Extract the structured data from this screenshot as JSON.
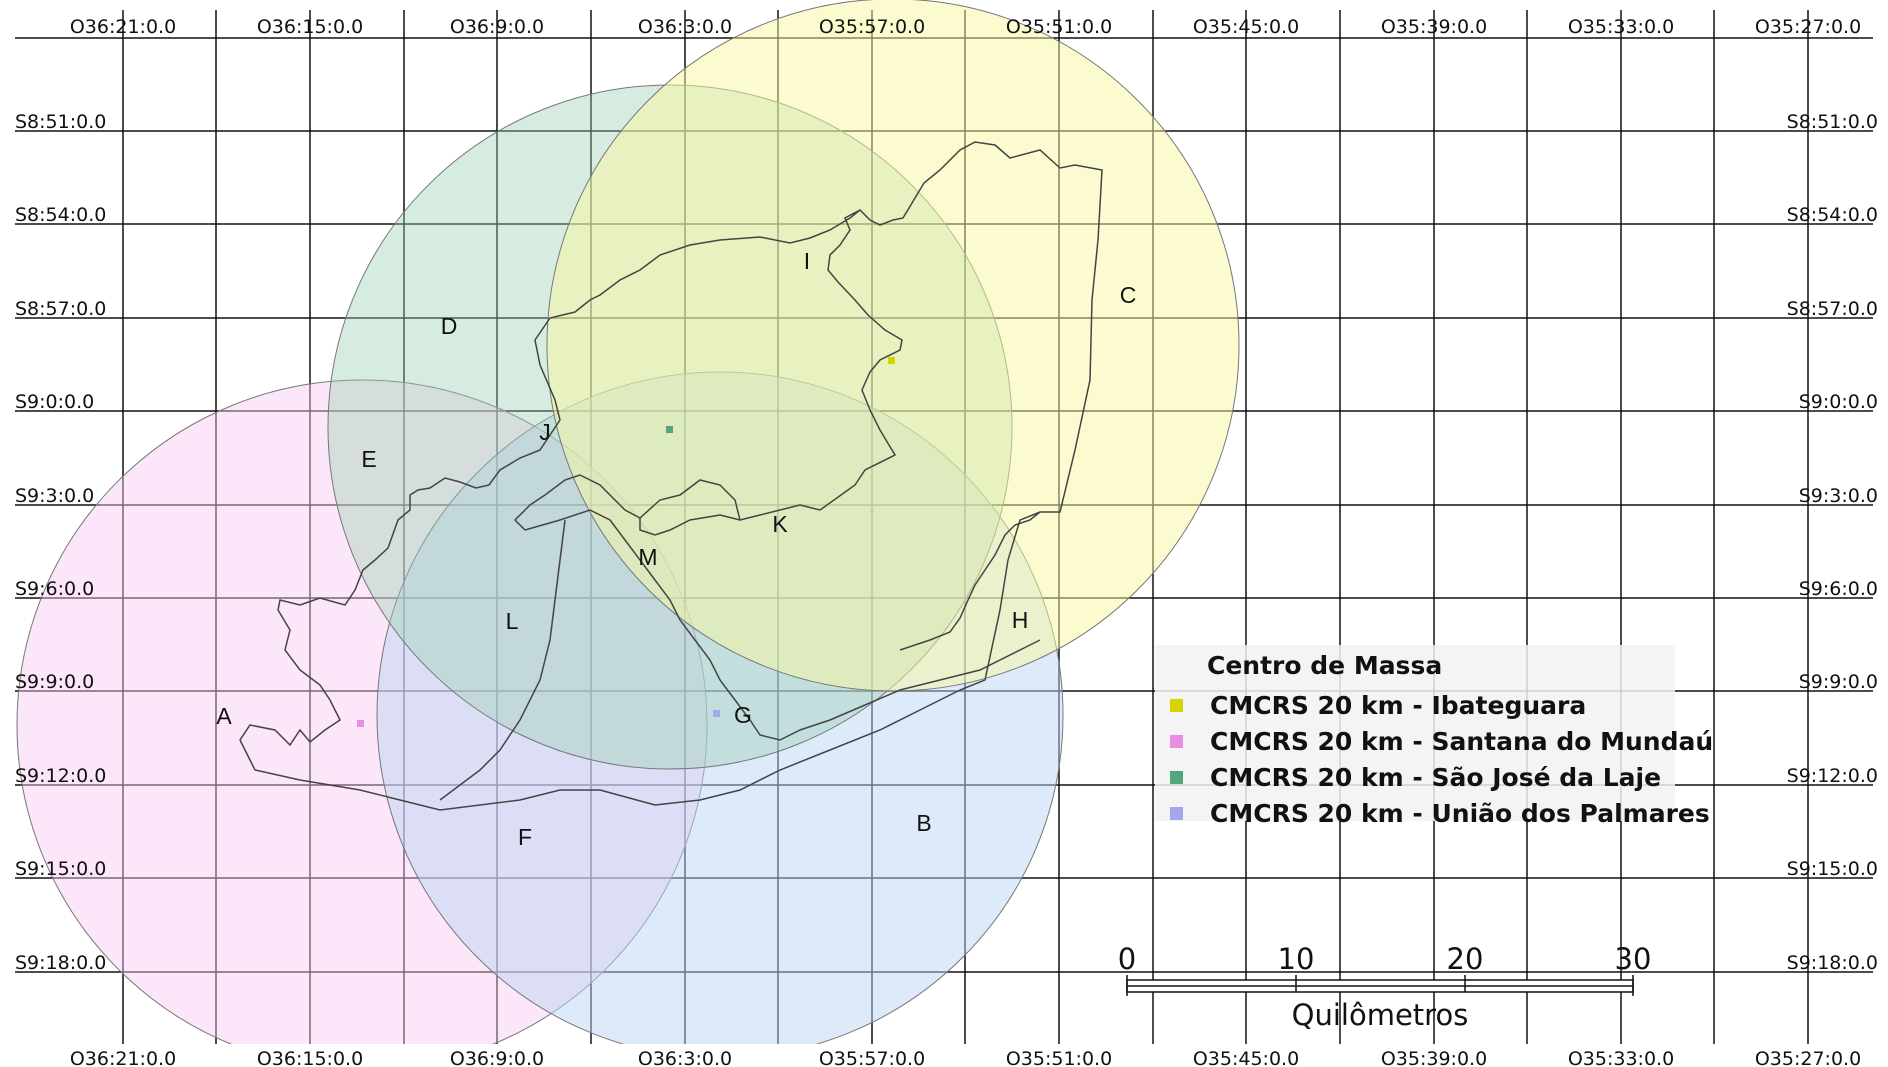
{
  "map": {
    "top_labels": [
      "O36:21:0.0",
      "O36:15:0.0",
      "O36:9:0.0",
      "O36:3:0.0",
      "O35:57:0.0",
      "O35:51:0.0",
      "O35:45:0.0",
      "O35:39:0.0",
      "O35:33:0.0",
      "O35:27:0.0"
    ],
    "bottom_labels": [
      "O36:21:0.0",
      "O36:15:0.0",
      "O36:9:0.0",
      "O36:3:0.0",
      "O35:57:0.0",
      "O35:51:0.0",
      "O35:45:0.0",
      "O35:39:0.0",
      "O35:33:0.0",
      "O35:27:0.0"
    ],
    "left_labels": [
      "S8:51:0.0",
      "S8:54:0.0",
      "S8:57:0.0",
      "S9:0:0.0",
      "S9:3:0.0",
      "S9:6:0.0",
      "S9:9:0.0",
      "S9:12:0.0",
      "S9:15:0.0",
      "S9:18:0.0"
    ],
    "right_labels": [
      "S8:51:0.0",
      "S8:54:0.0",
      "S8:57:0.0",
      "S9:0:0.0",
      "S9:3:0.0",
      "S9:6:0.0",
      "S9:9:0.0",
      "S9:12:0.0",
      "S9:15:0.0",
      "S9:18:0.0"
    ],
    "zone_labels": [
      "A",
      "B",
      "C",
      "D",
      "E",
      "F",
      "G",
      "H",
      "I",
      "J",
      "K",
      "L",
      "M"
    ],
    "circle_colors": {
      "Ibateguara": "#f7f7a0",
      "Santana do Mundaú": "#f8c8f2",
      "São José da Laje": "#9ccfb4",
      "União dos Palmares": "#bcd6f3"
    }
  },
  "legend": {
    "title": "Centro de Massa",
    "items": [
      {
        "label": "CMCRS 20 km - Ibateguara",
        "color": "#d8d400"
      },
      {
        "label": "CMCRS 20 km - Santana do Mundaú",
        "color": "#e68fe0"
      },
      {
        "label": "CMCRS 20 km - São José da Laje",
        "color": "#4fa77a"
      },
      {
        "label": "CMCRS 20 km - União dos Palmares",
        "color": "#a6a6f0"
      }
    ]
  },
  "scale_bar": {
    "ticks": [
      "0",
      "10",
      "20",
      "30"
    ],
    "unit": "Quilômetros"
  }
}
